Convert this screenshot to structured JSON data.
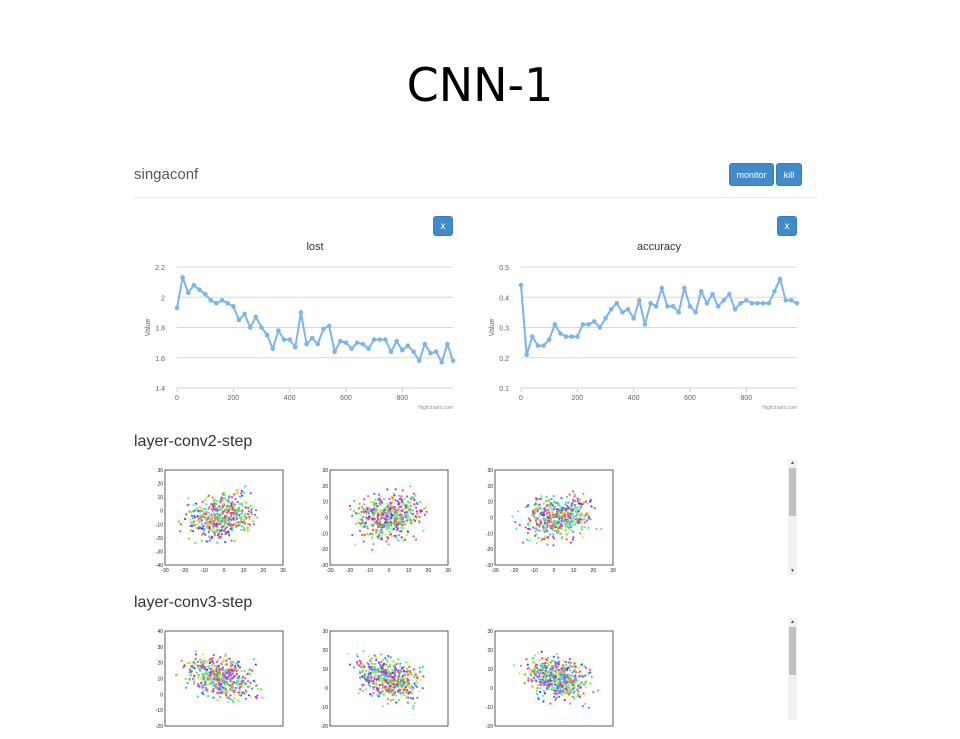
{
  "slide": {
    "title": "CNN-1"
  },
  "header": {
    "app_name": "singaconf",
    "monitor_label": "monitor",
    "kill_label": "kill"
  },
  "close_label": "x",
  "credits": "Highcharts.com",
  "chart_data": [
    {
      "type": "line",
      "title": "lost",
      "xlabel": "",
      "ylabel": "Value",
      "xlim": [
        0,
        980
      ],
      "ylim": [
        1.4,
        2.2
      ],
      "xticks": [
        0,
        200,
        400,
        600,
        800
      ],
      "yticks": [
        1.4,
        1.6,
        1.8,
        2,
        2.2
      ],
      "ytick_labels": [
        "1.4",
        "1.6",
        "1.8",
        "2",
        "2.2"
      ],
      "grid": true,
      "color": "#7cb5ec",
      "x": [
        0,
        20,
        40,
        60,
        80,
        100,
        120,
        140,
        160,
        180,
        200,
        220,
        240,
        260,
        280,
        300,
        320,
        340,
        360,
        380,
        400,
        420,
        440,
        460,
        480,
        500,
        520,
        540,
        560,
        580,
        600,
        620,
        640,
        660,
        680,
        700,
        720,
        740,
        760,
        780,
        800,
        820,
        840,
        860,
        880,
        900,
        920,
        940,
        960,
        980
      ],
      "y": [
        1.93,
        2.13,
        2.03,
        2.08,
        2.05,
        2.02,
        1.98,
        1.96,
        1.98,
        1.96,
        1.94,
        1.85,
        1.89,
        1.8,
        1.87,
        1.8,
        1.75,
        1.66,
        1.78,
        1.72,
        1.72,
        1.67,
        1.9,
        1.69,
        1.73,
        1.69,
        1.79,
        1.81,
        1.64,
        1.71,
        1.7,
        1.66,
        1.7,
        1.69,
        1.66,
        1.72,
        1.72,
        1.72,
        1.64,
        1.71,
        1.65,
        1.68,
        1.64,
        1.58,
        1.69,
        1.63,
        1.64,
        1.57,
        1.69,
        1.58
      ]
    },
    {
      "type": "line",
      "title": "accuracy",
      "xlabel": "",
      "ylabel": "Value",
      "xlim": [
        0,
        980
      ],
      "ylim": [
        0.1,
        0.5
      ],
      "xticks": [
        0,
        200,
        400,
        600,
        800
      ],
      "yticks": [
        0.1,
        0.2,
        0.3,
        0.4,
        0.5
      ],
      "ytick_labels": [
        "0.1",
        "0.2",
        "0.3",
        "0.4",
        "0.5"
      ],
      "grid": true,
      "color": "#7cb5ec",
      "x": [
        0,
        20,
        40,
        60,
        80,
        100,
        120,
        140,
        160,
        180,
        200,
        220,
        240,
        260,
        280,
        300,
        320,
        340,
        360,
        380,
        400,
        420,
        440,
        460,
        480,
        500,
        520,
        540,
        560,
        580,
        600,
        620,
        640,
        660,
        680,
        700,
        720,
        740,
        760,
        780,
        800,
        820,
        840,
        860,
        880,
        900,
        920,
        940,
        960,
        980
      ],
      "y": [
        0.44,
        0.21,
        0.27,
        0.24,
        0.24,
        0.26,
        0.31,
        0.28,
        0.27,
        0.27,
        0.27,
        0.31,
        0.31,
        0.32,
        0.3,
        0.33,
        0.36,
        0.38,
        0.35,
        0.36,
        0.33,
        0.39,
        0.31,
        0.38,
        0.37,
        0.43,
        0.37,
        0.37,
        0.35,
        0.43,
        0.37,
        0.35,
        0.42,
        0.38,
        0.41,
        0.37,
        0.39,
        0.41,
        0.36,
        0.38,
        0.39,
        0.38,
        0.38,
        0.38,
        0.38,
        0.42,
        0.46,
        0.39,
        0.39,
        0.38
      ]
    }
  ],
  "sections": [
    {
      "title": "layer-conv2-step",
      "plots": [
        {
          "xticks": [
            "-30",
            "-20",
            "-10",
            "0",
            "10",
            "20",
            "30"
          ],
          "yticks": [
            "30",
            "20",
            "10",
            "0",
            "-10",
            "-20",
            "-30",
            "-40"
          ]
        },
        {
          "xticks": [
            "-30",
            "-20",
            "-10",
            "0",
            "10",
            "20",
            "30"
          ],
          "yticks": [
            "30",
            "20",
            "10",
            "0",
            "-10",
            "-20",
            "-30"
          ]
        },
        {
          "xticks": [
            "-30",
            "-20",
            "-10",
            "0",
            "10",
            "20",
            "30"
          ],
          "yticks": [
            "30",
            "20",
            "10",
            "0",
            "-10",
            "-20",
            "-30"
          ]
        }
      ]
    },
    {
      "title": "layer-conv3-step",
      "plots": [
        {
          "xticks": [],
          "yticks": [
            "40",
            "30",
            "20",
            "10",
            "0",
            "-10",
            "-20"
          ]
        },
        {
          "xticks": [],
          "yticks": [
            "30",
            "20",
            "10",
            "0",
            "-10",
            "-20"
          ]
        },
        {
          "xticks": [],
          "yticks": [
            "30",
            "20",
            "10",
            "0",
            "-10",
            "-20"
          ]
        }
      ]
    }
  ]
}
